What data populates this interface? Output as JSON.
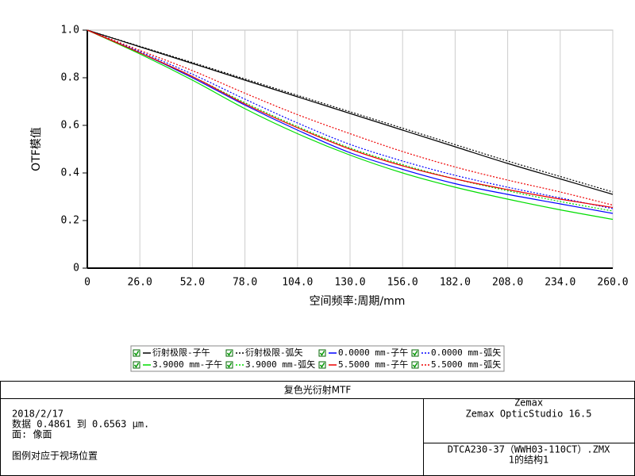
{
  "chart_data": {
    "type": "line",
    "xlabel": "空间频率:周期/mm",
    "ylabel": "OTF模值",
    "x": [
      0,
      26,
      52,
      78,
      104,
      130,
      156,
      182,
      208,
      234,
      260
    ],
    "xlim": [
      0,
      260
    ],
    "ylim": [
      0,
      1
    ],
    "xticks": [
      0,
      {
        "value": 26,
        "label": "26.0"
      },
      {
        "value": 52,
        "label": "52.0"
      },
      {
        "value": 78,
        "label": "78.0"
      },
      {
        "value": 104,
        "label": "104.0"
      },
      {
        "value": 130,
        "label": "130.0"
      },
      {
        "value": 156,
        "label": "156.0"
      },
      {
        "value": 182,
        "label": "182.0"
      },
      {
        "value": 208,
        "label": "208.0"
      },
      {
        "value": 234,
        "label": "234.0"
      },
      {
        "value": 260,
        "label": "260.0"
      }
    ],
    "yticks": [
      0,
      {
        "value": 0.2,
        "label": "0.2"
      },
      {
        "value": 0.4,
        "label": "0.4"
      },
      {
        "value": 0.6,
        "label": "0.6"
      },
      {
        "value": 0.8,
        "label": "0.8"
      },
      {
        "value": 1,
        "label": "1.0"
      }
    ],
    "grid": "x",
    "series": [
      {
        "name": "衍射极限-子午",
        "color": "#000000",
        "style": "solid",
        "values": [
          1,
          0.93,
          0.86,
          0.79,
          0.72,
          0.65,
          0.58,
          0.51,
          0.44,
          0.375,
          0.31
        ]
      },
      {
        "name": "衍射极限-弧矢",
        "color": "#000000",
        "style": "dotted",
        "values": [
          1,
          0.932,
          0.864,
          0.795,
          0.726,
          0.657,
          0.588,
          0.519,
          0.45,
          0.385,
          0.32
        ]
      },
      {
        "name": "0.0000 mm-子午",
        "color": "#0000ff",
        "style": "solid",
        "values": [
          1,
          0.905,
          0.8,
          0.685,
          0.58,
          0.485,
          0.415,
          0.355,
          0.31,
          0.27,
          0.23
        ]
      },
      {
        "name": "0.0000 mm-弧矢",
        "color": "#0000ff",
        "style": "dotted",
        "values": [
          1,
          0.91,
          0.815,
          0.71,
          0.61,
          0.52,
          0.45,
          0.39,
          0.34,
          0.295,
          0.25
        ]
      },
      {
        "name": "3.9000 mm-子午",
        "color": "#00dd00",
        "style": "solid",
        "values": [
          1,
          0.9,
          0.79,
          0.67,
          0.565,
          0.475,
          0.4,
          0.34,
          0.29,
          0.245,
          0.205
        ]
      },
      {
        "name": "3.9000 mm-弧矢",
        "color": "#00dd00",
        "style": "dotted",
        "values": [
          1,
          0.905,
          0.805,
          0.695,
          0.595,
          0.505,
          0.435,
          0.375,
          0.325,
          0.28,
          0.24
        ]
      },
      {
        "name": "5.5000 mm-子午",
        "color": "#ee0000",
        "style": "solid",
        "values": [
          1,
          0.905,
          0.805,
          0.69,
          0.59,
          0.5,
          0.43,
          0.375,
          0.33,
          0.29,
          0.255
        ]
      },
      {
        "name": "5.5000 mm-弧矢",
        "color": "#ee0000",
        "style": "dotted",
        "values": [
          1,
          0.915,
          0.83,
          0.735,
          0.645,
          0.565,
          0.49,
          0.425,
          0.37,
          0.32,
          0.265
        ]
      }
    ]
  },
  "footer": {
    "title": "复色光衍射MTF",
    "left": [
      "2018/2/17",
      "数据 0.4861 到 0.6563 μm.",
      "面: 像面",
      "图例对应于视场位置"
    ],
    "right_top": [
      "Zemax",
      "Zemax OpticStudio 16.5"
    ],
    "right_bottom": [
      "DTCA230-37（WWH03-110CT）.ZMX",
      "1的结构1"
    ]
  }
}
